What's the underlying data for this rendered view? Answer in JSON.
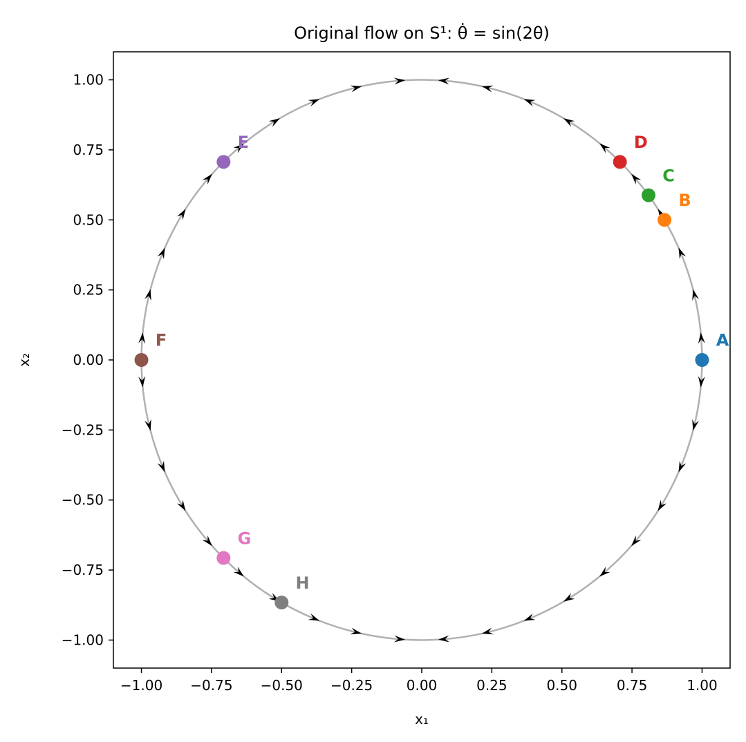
{
  "chart_data": {
    "type": "scatter",
    "title": "Original flow on S¹: θ̇ = sin(2θ)",
    "xlabel": "x₁",
    "ylabel": "x₂",
    "xlim": [
      -1.1,
      1.1
    ],
    "ylim": [
      -1.1,
      1.1
    ],
    "grid": false,
    "x_ticks": [
      "−1.00",
      "−0.75",
      "−0.50",
      "−0.25",
      "0.00",
      "0.25",
      "0.50",
      "0.75",
      "1.00"
    ],
    "y_ticks": [
      "1.00",
      "0.75",
      "0.50",
      "0.25",
      "0.00",
      "−0.25",
      "−0.50",
      "−0.75",
      "−1.00"
    ],
    "x_tick_values": [
      -1.0,
      -0.75,
      -0.5,
      -0.25,
      0.0,
      0.25,
      0.5,
      0.75,
      1.0
    ],
    "y_tick_values": [
      1.0,
      0.75,
      0.5,
      0.25,
      0.0,
      -0.25,
      -0.5,
      -0.75,
      -1.0
    ],
    "circle": {
      "radius": 1.0,
      "color": "#b0b0b0"
    },
    "flow": {
      "equation": "sin(2θ)",
      "arrow_count": 40,
      "arrow_color": "#000000"
    },
    "points": [
      {
        "label": "A",
        "x": 1.0,
        "y": 0.0,
        "color": "#1f77b4"
      },
      {
        "label": "B",
        "x": 0.866,
        "y": 0.5,
        "color": "#ff7f0e"
      },
      {
        "label": "C",
        "x": 0.809,
        "y": 0.588,
        "color": "#2ca02c"
      },
      {
        "label": "D",
        "x": 0.707,
        "y": 0.707,
        "color": "#d62728"
      },
      {
        "label": "E",
        "x": -0.707,
        "y": 0.707,
        "color": "#9467bd"
      },
      {
        "label": "F",
        "x": -1.0,
        "y": 0.0,
        "color": "#8c564b"
      },
      {
        "label": "G",
        "x": -0.707,
        "y": -0.707,
        "color": "#e377c2"
      },
      {
        "label": "H",
        "x": -0.5,
        "y": -0.866,
        "color": "#7f7f7f"
      }
    ]
  }
}
